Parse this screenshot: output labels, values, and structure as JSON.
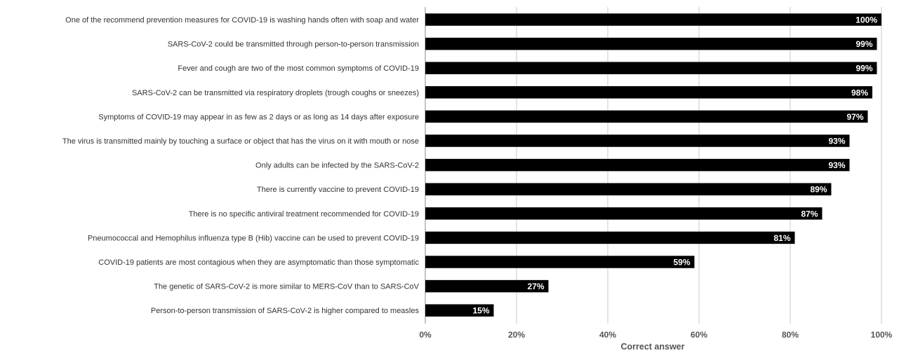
{
  "chart_data": {
    "type": "bar",
    "orientation": "horizontal",
    "xlabel": "Correct answer",
    "xlim": [
      0,
      100
    ],
    "x_ticks": [
      "0%",
      "20%",
      "40%",
      "60%",
      "80%",
      "100%"
    ],
    "grid": "vertical",
    "categories": [
      "One of the recommend prevention measures for COVID-19 is washing hands often with soap and water",
      "SARS-CoV-2 could be transmitted through person-to-person transmission",
      "Fever and cough are two of the most common symptoms of COVID-19",
      "SARS-CoV-2 can be transmitted via respiratory droplets (trough coughs or sneezes)",
      "Symptoms of COVID-19 may appear in as few as 2 days or as long as 14 days after exposure",
      "The virus is transmitted mainly by touching a surface or object that has the virus on it with mouth or nose",
      "Only adults can be infected by the SARS-CoV-2",
      "There is currently vaccine to prevent COVID-19",
      "There is no specific antiviral treatment recommended for COVID-19",
      "Pneumococcal and Hemophilus influenza type B (Hib) vaccine can be used to prevent COVID-19",
      "COVID-19 patients are most contagious when they are asymptomatic than those symptomatic",
      "The genetic of SARS-CoV-2 is more similar to MERS-CoV than to SARS-CoV",
      "Person-to-person transmission of SARS-CoV-2 is higher compared to measles"
    ],
    "values": [
      100,
      99,
      99,
      98,
      97,
      93,
      93,
      89,
      87,
      81,
      59,
      27,
      15
    ],
    "data_labels": [
      "100%",
      "99%",
      "99%",
      "98%",
      "97%",
      "93%",
      "93%",
      "89%",
      "87%",
      "81%",
      "59%",
      "27%",
      "15%"
    ],
    "bar_color": "#000000",
    "grid_color": "#c8c8c8",
    "label_color": "#ffffff"
  }
}
